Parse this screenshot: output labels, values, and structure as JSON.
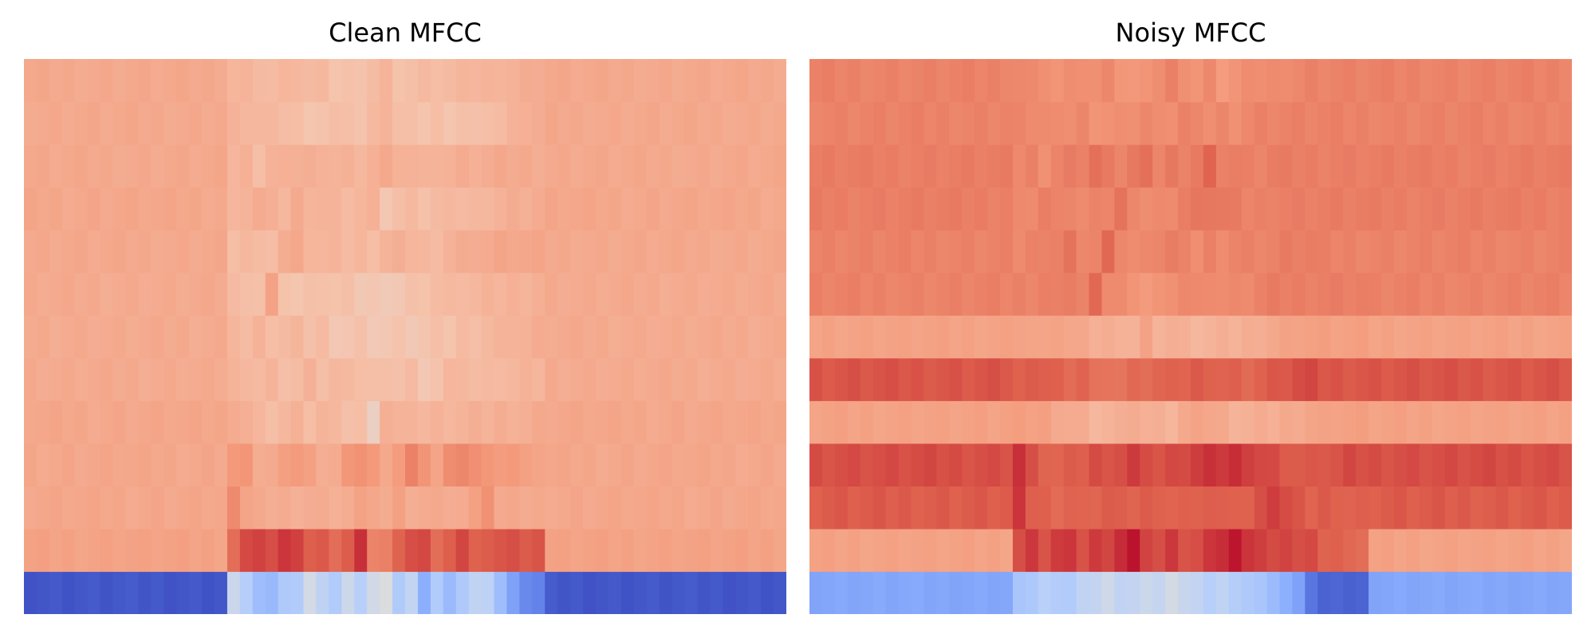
{
  "chart_data": [
    {
      "type": "heatmap",
      "title": "Clean MFCC",
      "colormap": "coolwarm",
      "n_frames": 60,
      "n_coeffs": 13,
      "vrange": [
        -1,
        1
      ],
      "rows_bottom_to_top": [
        {
          "base": -0.95,
          "active": [
            -0.15,
            -0.25,
            -0.4,
            -0.45,
            -0.3,
            -0.3,
            -0.05,
            -0.2,
            -0.3,
            -0.1,
            -0.25,
            -0.1,
            0.0,
            -0.3,
            -0.2,
            -0.5,
            -0.3,
            -0.4,
            -0.3,
            -0.2,
            -0.2,
            -0.4,
            -0.6,
            -0.7,
            -0.75
          ]
        },
        {
          "base": 0.45,
          "active": [
            0.7,
            0.8,
            0.85,
            0.8,
            0.85,
            0.85,
            0.75,
            0.75,
            0.7,
            0.75,
            0.9,
            0.6,
            0.6,
            0.75,
            0.8,
            0.8,
            0.7,
            0.75,
            0.8,
            0.75,
            0.75,
            0.8,
            0.8,
            0.75,
            0.8
          ]
        },
        {
          "base": 0.42,
          "active": [
            0.55,
            0.45,
            0.4,
            0.4,
            0.4,
            0.35,
            0.4,
            0.4,
            0.35,
            0.4,
            0.45,
            0.4,
            0.4,
            0.45,
            0.4,
            0.4,
            0.4,
            0.4,
            0.4,
            0.45,
            0.55,
            0.4,
            0.4,
            0.4,
            0.4
          ]
        },
        {
          "base": 0.42,
          "active": [
            0.5,
            0.5,
            0.4,
            0.4,
            0.45,
            0.5,
            0.45,
            0.4,
            0.4,
            0.5,
            0.55,
            0.5,
            0.4,
            0.5,
            0.6,
            0.5,
            0.45,
            0.55,
            0.6,
            0.55,
            0.5,
            0.5,
            0.5,
            0.45,
            0.45
          ]
        },
        {
          "base": 0.42,
          "active": [
            0.42,
            0.38,
            0.32,
            0.3,
            0.32,
            0.35,
            0.3,
            0.34,
            0.3,
            0.28,
            0.28,
            0.16,
            0.38,
            0.34,
            0.36,
            0.32,
            0.34,
            0.34,
            0.34,
            0.36,
            0.36,
            0.38,
            0.38,
            0.38,
            0.4
          ]
        },
        {
          "base": 0.4,
          "active": [
            0.35,
            0.3,
            0.32,
            0.34,
            0.3,
            0.3,
            0.35,
            0.3,
            0.32,
            0.3,
            0.3,
            0.28,
            0.26,
            0.28,
            0.3,
            0.24,
            0.26,
            0.32,
            0.34,
            0.3,
            0.3,
            0.32,
            0.32,
            0.34,
            0.34
          ]
        },
        {
          "base": 0.4,
          "active": [
            0.35,
            0.3,
            0.34,
            0.3,
            0.3,
            0.32,
            0.28,
            0.3,
            0.24,
            0.24,
            0.26,
            0.22,
            0.22,
            0.24,
            0.22,
            0.24,
            0.26,
            0.26,
            0.3,
            0.3,
            0.32,
            0.34,
            0.36,
            0.36,
            0.38
          ]
        },
        {
          "base": 0.4,
          "active": [
            0.3,
            0.3,
            0.28,
            0.44,
            0.28,
            0.24,
            0.26,
            0.28,
            0.26,
            0.26,
            0.22,
            0.22,
            0.22,
            0.22,
            0.26,
            0.28,
            0.3,
            0.3,
            0.32,
            0.32,
            0.34,
            0.34,
            0.36,
            0.36,
            0.38
          ]
        },
        {
          "base": 0.41,
          "active": [
            0.3,
            0.32,
            0.28,
            0.3,
            0.38,
            0.44,
            0.34,
            0.32,
            0.36,
            0.3,
            0.32,
            0.3,
            0.34,
            0.36,
            0.34,
            0.32,
            0.32,
            0.36,
            0.38,
            0.4,
            0.4,
            0.42,
            0.42,
            0.42,
            0.42
          ]
        },
        {
          "base": 0.42,
          "active": [
            0.32,
            0.36,
            0.4,
            0.36,
            0.34,
            0.4,
            0.32,
            0.36,
            0.34,
            0.32,
            0.34,
            0.36,
            0.24,
            0.28,
            0.3,
            0.28,
            0.3,
            0.3,
            0.32,
            0.32,
            0.34,
            0.36,
            0.38,
            0.38,
            0.4
          ]
        },
        {
          "base": 0.41,
          "active": [
            0.34,
            0.36,
            0.3,
            0.36,
            0.36,
            0.38,
            0.38,
            0.34,
            0.36,
            0.36,
            0.3,
            0.38,
            0.4,
            0.38,
            0.36,
            0.34,
            0.36,
            0.36,
            0.38,
            0.38,
            0.38,
            0.4,
            0.4,
            0.4,
            0.4
          ]
        },
        {
          "base": 0.41,
          "active": [
            0.34,
            0.34,
            0.32,
            0.3,
            0.3,
            0.28,
            0.26,
            0.26,
            0.28,
            0.3,
            0.26,
            0.3,
            0.36,
            0.28,
            0.26,
            0.26,
            0.28,
            0.26,
            0.28,
            0.26,
            0.3,
            0.3,
            0.34,
            0.38,
            0.38
          ]
        },
        {
          "base": 0.41,
          "active": [
            0.34,
            0.34,
            0.32,
            0.3,
            0.32,
            0.34,
            0.3,
            0.3,
            0.26,
            0.26,
            0.28,
            0.3,
            0.34,
            0.28,
            0.28,
            0.3,
            0.3,
            0.3,
            0.32,
            0.34,
            0.34,
            0.36,
            0.36,
            0.38,
            0.4
          ]
        }
      ],
      "active_start": 16
    },
    {
      "type": "heatmap",
      "title": "Noisy MFCC",
      "colormap": "coolwarm",
      "n_frames": 60,
      "n_coeffs": 13,
      "vrange": [
        -1,
        1
      ],
      "rows_bottom_to_top": [
        {
          "base": -0.55,
          "active": [
            -0.35,
            -0.3,
            -0.25,
            -0.3,
            -0.28,
            -0.2,
            -0.15,
            -0.1,
            -0.2,
            -0.15,
            -0.12,
            -0.18,
            -0.05,
            -0.15,
            -0.2,
            -0.25,
            -0.2,
            -0.25,
            -0.3,
            -0.35,
            -0.4,
            -0.5,
            -0.6,
            -0.8,
            -0.9,
            -0.9,
            -0.9,
            -0.9
          ]
        },
        {
          "base": 0.45,
          "active": [
            0.8,
            0.85,
            0.8,
            0.85,
            0.85,
            0.8,
            0.85,
            0.8,
            0.9,
            0.95,
            0.85,
            0.8,
            0.85,
            0.8,
            0.8,
            0.85,
            0.9,
            0.95,
            0.85,
            0.85,
            0.8,
            0.85,
            0.8,
            0.8,
            0.75,
            0.75,
            0.7,
            0.7
          ]
        },
        {
          "base": 0.76,
          "active": [
            0.85,
            0.76,
            0.74,
            0.72,
            0.74,
            0.72,
            0.74,
            0.76,
            0.74,
            0.74,
            0.76,
            0.72,
            0.74,
            0.74,
            0.76,
            0.76,
            0.74,
            0.76,
            0.74,
            0.78,
            0.86,
            0.8,
            0.76,
            0.74,
            0.76,
            0.76,
            0.74,
            0.74
          ]
        },
        {
          "base": 0.8,
          "active": [
            0.88,
            0.78,
            0.74,
            0.72,
            0.74,
            0.76,
            0.8,
            0.8,
            0.8,
            0.84,
            0.82,
            0.78,
            0.8,
            0.82,
            0.84,
            0.86,
            0.86,
            0.88,
            0.86,
            0.82,
            0.8,
            0.78,
            0.76,
            0.76,
            0.78,
            0.78,
            0.8,
            0.8
          ]
        },
        {
          "base": 0.45,
          "active": [
            0.5,
            0.46,
            0.46,
            0.42,
            0.4,
            0.38,
            0.34,
            0.34,
            0.36,
            0.4,
            0.36,
            0.4,
            0.34,
            0.4,
            0.46,
            0.42,
            0.4,
            0.36,
            0.36,
            0.38,
            0.38,
            0.4,
            0.42,
            0.44,
            0.44,
            0.46,
            0.46,
            0.46
          ]
        },
        {
          "base": 0.78,
          "active": [
            0.74,
            0.74,
            0.76,
            0.74,
            0.72,
            0.74,
            0.66,
            0.68,
            0.66,
            0.7,
            0.7,
            0.72,
            0.72,
            0.74,
            0.76,
            0.76,
            0.74,
            0.74,
            0.72,
            0.74,
            0.76,
            0.78,
            0.8,
            0.8,
            0.78,
            0.78,
            0.78,
            0.78
          ]
        },
        {
          "base": 0.45,
          "active": [
            0.46,
            0.44,
            0.42,
            0.46,
            0.42,
            0.4,
            0.38,
            0.38,
            0.38,
            0.36,
            0.44,
            0.36,
            0.38,
            0.36,
            0.34,
            0.34,
            0.36,
            0.36,
            0.38,
            0.4,
            0.42,
            0.44,
            0.46,
            0.46,
            0.46,
            0.46,
            0.46,
            0.46
          ]
        },
        {
          "base": 0.6,
          "active": [
            0.6,
            0.6,
            0.62,
            0.6,
            0.64,
            0.6,
            0.7,
            0.58,
            0.56,
            0.5,
            0.5,
            0.52,
            0.56,
            0.58,
            0.56,
            0.58,
            0.56,
            0.56,
            0.58,
            0.6,
            0.62,
            0.62,
            0.62,
            0.62,
            0.62,
            0.62,
            0.62,
            0.62
          ]
        },
        {
          "base": 0.6,
          "active": [
            0.58,
            0.6,
            0.58,
            0.62,
            0.66,
            0.6,
            0.6,
            0.7,
            0.6,
            0.56,
            0.56,
            0.6,
            0.62,
            0.58,
            0.56,
            0.6,
            0.58,
            0.6,
            0.6,
            0.6,
            0.6,
            0.62,
            0.62,
            0.62,
            0.6,
            0.6,
            0.6,
            0.6
          ]
        },
        {
          "base": 0.62,
          "active": [
            0.56,
            0.58,
            0.62,
            0.58,
            0.6,
            0.56,
            0.58,
            0.6,
            0.66,
            0.6,
            0.56,
            0.56,
            0.58,
            0.62,
            0.64,
            0.66,
            0.64,
            0.62,
            0.6,
            0.6,
            0.62,
            0.62,
            0.62,
            0.62,
            0.62,
            0.62,
            0.62,
            0.62
          ]
        },
        {
          "base": 0.62,
          "active": [
            0.58,
            0.6,
            0.56,
            0.6,
            0.62,
            0.62,
            0.68,
            0.62,
            0.6,
            0.64,
            0.66,
            0.6,
            0.64,
            0.62,
            0.64,
            0.72,
            0.62,
            0.62,
            0.6,
            0.6,
            0.62,
            0.62,
            0.62,
            0.62,
            0.62,
            0.62,
            0.62,
            0.62
          ]
        },
        {
          "base": 0.6,
          "active": [
            0.58,
            0.58,
            0.56,
            0.54,
            0.56,
            0.58,
            0.54,
            0.54,
            0.54,
            0.56,
            0.58,
            0.54,
            0.56,
            0.6,
            0.56,
            0.56,
            0.58,
            0.56,
            0.58,
            0.6,
            0.6,
            0.6,
            0.6,
            0.6,
            0.6,
            0.6,
            0.6,
            0.6
          ]
        },
        {
          "base": 0.6,
          "active": [
            0.58,
            0.56,
            0.56,
            0.52,
            0.54,
            0.56,
            0.54,
            0.56,
            0.52,
            0.5,
            0.54,
            0.56,
            0.6,
            0.56,
            0.52,
            0.56,
            0.5,
            0.52,
            0.54,
            0.56,
            0.56,
            0.58,
            0.58,
            0.6,
            0.6,
            0.6,
            0.6,
            0.6
          ]
        }
      ],
      "active_start": 16
    }
  ]
}
